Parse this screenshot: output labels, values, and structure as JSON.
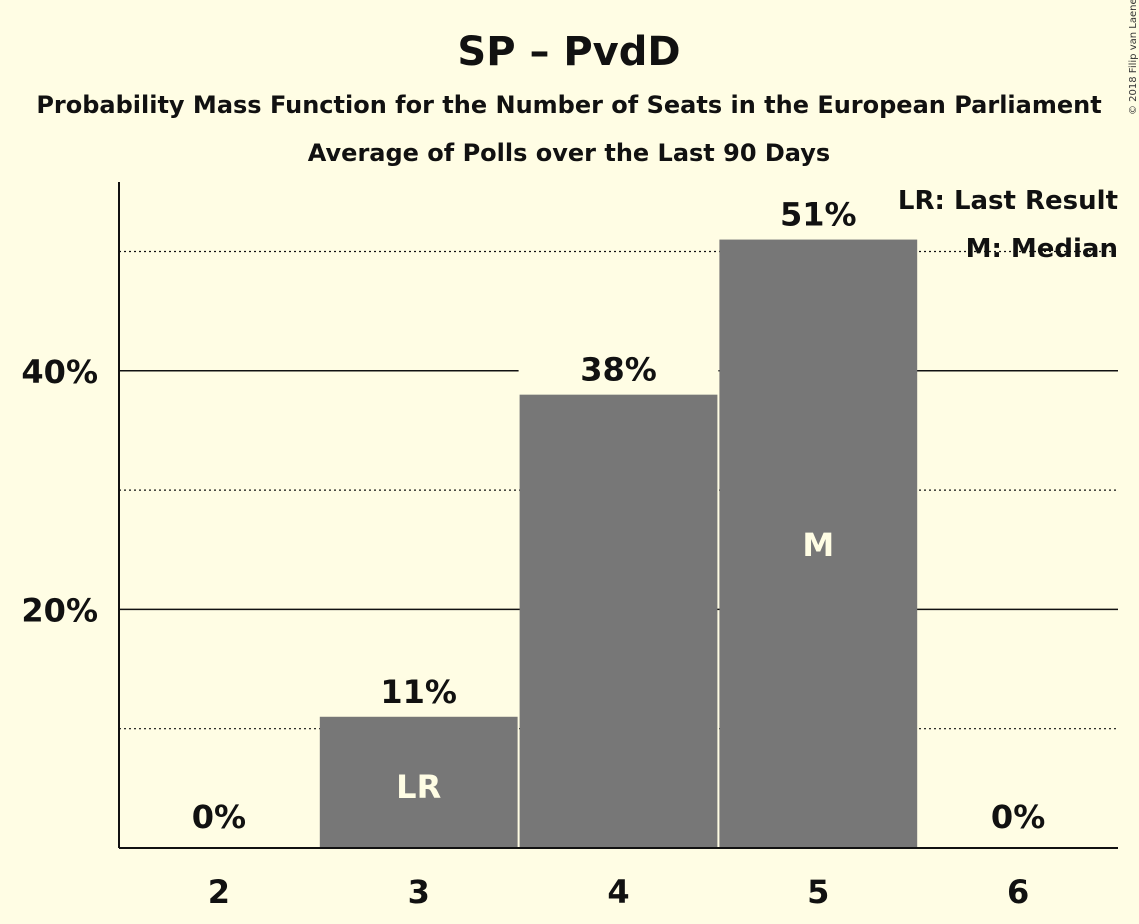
{
  "chart_data": {
    "type": "bar",
    "title": "SP – PvdD",
    "subtitle": "Probability Mass Function for the Number of Seats in the European Parliament",
    "subtitle2": "Average of Polls over the Last 90 Days",
    "categories": [
      "2",
      "3",
      "4",
      "5",
      "6"
    ],
    "values": [
      0,
      11,
      38,
      51,
      0
    ],
    "value_labels": [
      "0%",
      "11%",
      "38%",
      "51%",
      "0%"
    ],
    "bar_markers": [
      "",
      "LR",
      "",
      "M",
      ""
    ],
    "y_ticks": [
      {
        "value": 20,
        "label": "20%"
      },
      {
        "value": 40,
        "label": "40%"
      }
    ],
    "minor_gridlines": [
      10,
      30,
      50
    ],
    "ylim": [
      0,
      56
    ],
    "legend": {
      "position": "top-right",
      "items": [
        "LR: Last Result",
        "M: Median"
      ]
    },
    "copyright": "© 2018 Filip van Laenen",
    "colors": {
      "background": "#fffde4",
      "bar": "#777777",
      "text": "#111111",
      "marker_text": "#fffde4"
    }
  }
}
